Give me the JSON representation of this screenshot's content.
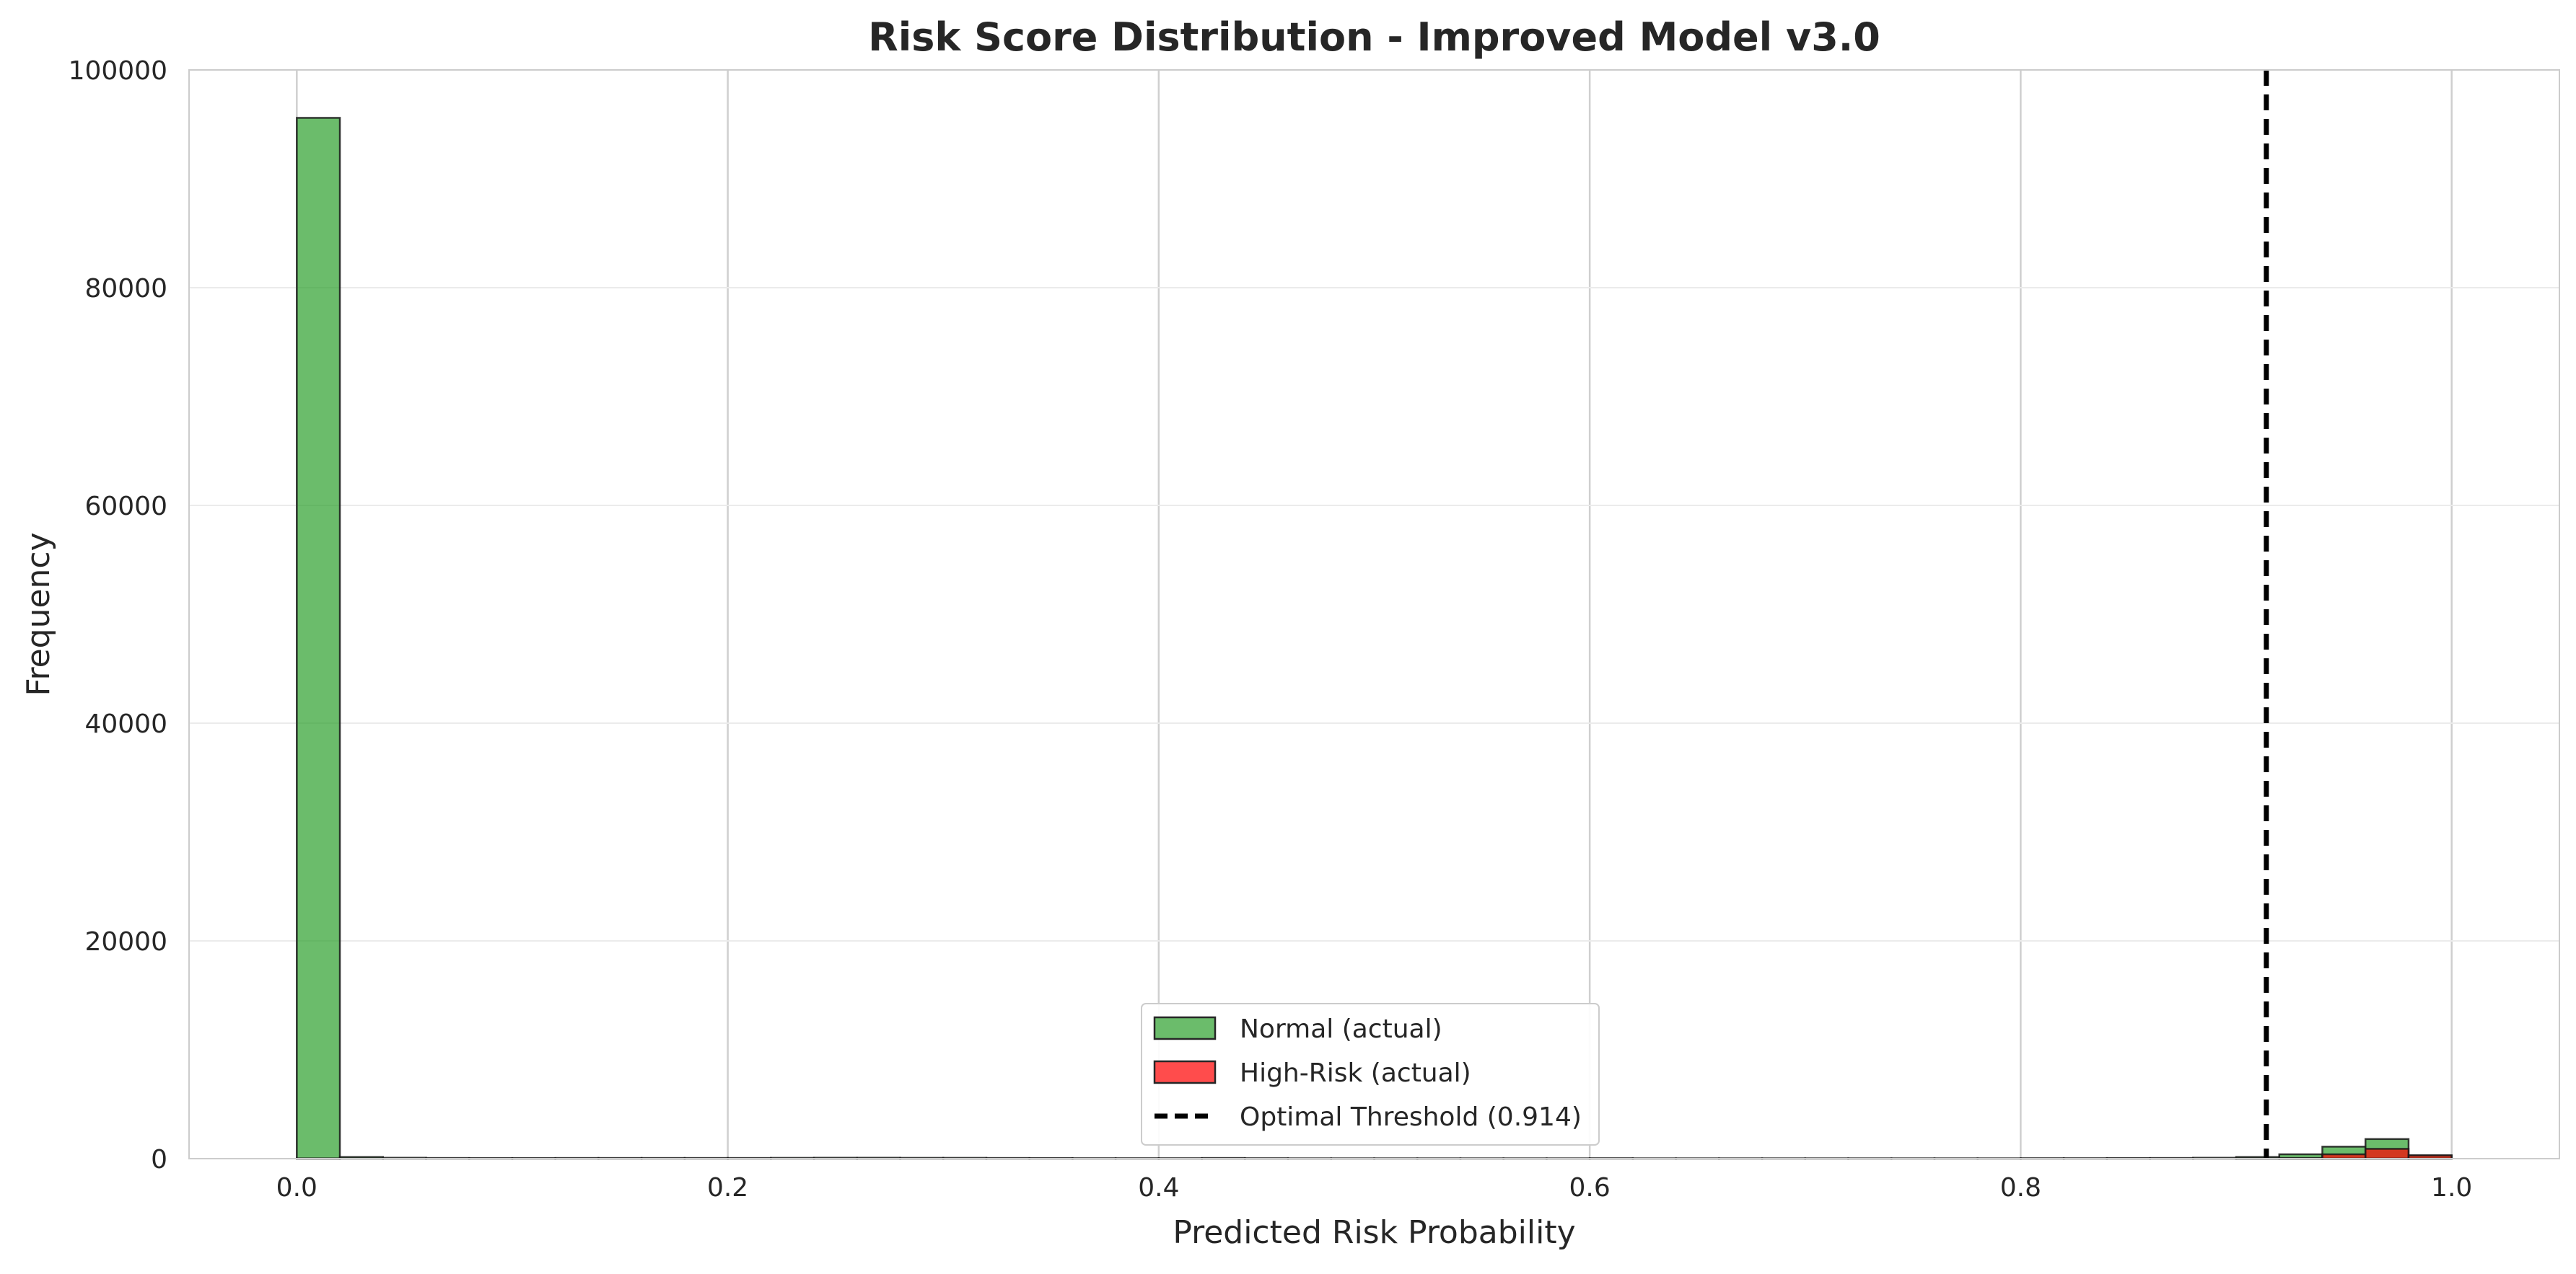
{
  "chart_data": {
    "type": "histogram",
    "title": "Risk Score Distribution - Improved Model v3.0",
    "xlabel": "Predicted Risk Probability",
    "ylabel": "Frequency",
    "xlim": [
      -0.05,
      1.05
    ],
    "ylim": [
      0,
      100000
    ],
    "xticks": [
      0.0,
      0.2,
      0.4,
      0.6,
      0.8,
      1.0
    ],
    "xtick_labels": [
      "0.0",
      "0.2",
      "0.4",
      "0.6",
      "0.8",
      "1.0"
    ],
    "yticks": [
      0,
      20000,
      40000,
      60000,
      80000,
      100000
    ],
    "ytick_labels": [
      "0",
      "20000",
      "40000",
      "60000",
      "80000",
      "100000"
    ],
    "grid": true,
    "legend_position": "lower-center",
    "bin_edges": [
      0.0,
      0.02,
      0.04,
      0.06,
      0.08,
      0.1,
      0.12,
      0.14,
      0.16,
      0.18,
      0.2,
      0.22,
      0.24,
      0.26,
      0.28,
      0.3,
      0.32,
      0.34,
      0.36,
      0.38,
      0.4,
      0.42,
      0.44,
      0.46,
      0.48,
      0.5,
      0.52,
      0.54,
      0.56,
      0.58,
      0.6,
      0.62,
      0.64,
      0.66,
      0.68,
      0.7,
      0.72,
      0.74,
      0.76,
      0.78,
      0.8,
      0.82,
      0.84,
      0.86,
      0.88,
      0.9,
      0.92,
      0.94,
      0.96,
      0.98,
      1.0
    ],
    "series": [
      {
        "name": "Normal (actual)",
        "color": "#2ca02c",
        "values": [
          95600,
          150,
          80,
          60,
          50,
          50,
          60,
          60,
          60,
          60,
          60,
          70,
          80,
          80,
          70,
          70,
          60,
          50,
          40,
          40,
          40,
          60,
          40,
          30,
          30,
          30,
          30,
          30,
          30,
          30,
          40,
          30,
          30,
          30,
          30,
          30,
          30,
          30,
          30,
          30,
          40,
          40,
          50,
          60,
          80,
          150,
          400,
          1100,
          1800,
          300
        ]
      },
      {
        "name": "High-Risk (actual)",
        "color": "#ff0000",
        "values": [
          20,
          0,
          0,
          0,
          0,
          0,
          0,
          0,
          0,
          0,
          0,
          0,
          0,
          0,
          0,
          0,
          0,
          0,
          0,
          0,
          0,
          0,
          0,
          0,
          0,
          0,
          0,
          0,
          0,
          0,
          0,
          0,
          0,
          0,
          0,
          0,
          0,
          0,
          0,
          0,
          0,
          0,
          0,
          0,
          0,
          10,
          60,
          400,
          900,
          300
        ]
      }
    ],
    "threshold": {
      "name": "Optimal Threshold (0.914)",
      "value": 0.914,
      "color": "#000000"
    }
  }
}
